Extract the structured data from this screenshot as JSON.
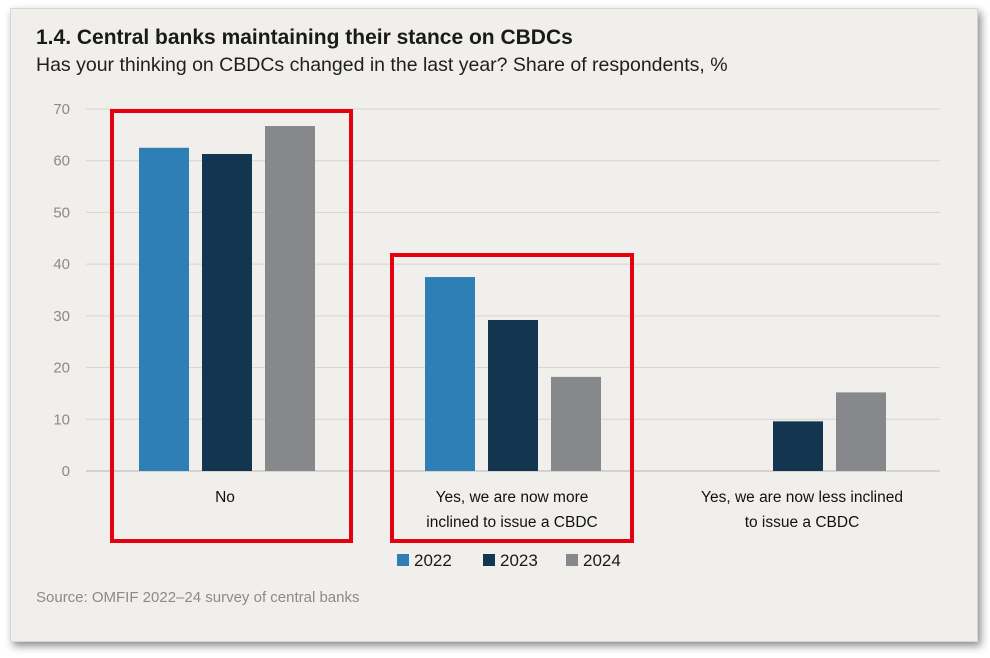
{
  "header": {
    "title": "1.4. Central banks maintaining their stance on CBDCs",
    "subtitle": "Has your thinking on CBDCs changed in the last year? Share of respondents, %"
  },
  "footer": {
    "source": "Source: OMFIF 2022–24 survey of central banks"
  },
  "colors": {
    "2022": "#2e7fb5",
    "2023": "#13354f",
    "2024": "#86888b",
    "highlight": "#e3000f",
    "grid": "#d6d3cf",
    "background": "#f1efec"
  },
  "chart_data": {
    "type": "bar",
    "title": "1.4. Central banks maintaining their stance on CBDCs",
    "subtitle": "Has your thinking on CBDCs changed in the last year? Share of respondents, %",
    "xlabel": "",
    "ylabel": "",
    "ylim": [
      0,
      70
    ],
    "yticks": [
      0,
      10,
      20,
      30,
      40,
      50,
      60,
      70
    ],
    "grid": true,
    "legend_position": "bottom",
    "categories": [
      [
        "No"
      ],
      [
        "Yes, we are now more",
        "inclined to issue a CBDC"
      ],
      [
        "Yes, we are now less inclined",
        "to issue a CBDC"
      ]
    ],
    "series": [
      {
        "name": "2022",
        "values": [
          62.5,
          37.5,
          0
        ]
      },
      {
        "name": "2023",
        "values": [
          61.3,
          29.2,
          9.6
        ]
      },
      {
        "name": "2024",
        "values": [
          66.7,
          18.2,
          15.2
        ]
      }
    ],
    "highlighted_categories": [
      0,
      1
    ]
  }
}
